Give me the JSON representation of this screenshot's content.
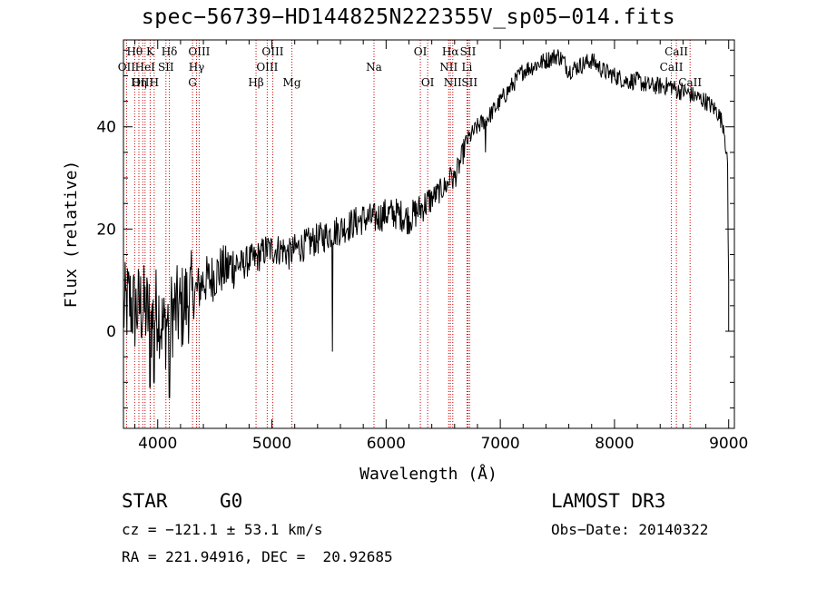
{
  "chart_data": {
    "type": "line",
    "title": "spec−56739−HD144825N222355V_sp05−014.fits",
    "xlabel": "Wavelength (Å)",
    "ylabel": "Flux (relative)",
    "xlim": [
      3700,
      9050
    ],
    "ylim": [
      -19,
      57
    ],
    "x_ticks": [
      4000,
      5000,
      6000,
      7000,
      8000,
      9000
    ],
    "y_ticks": [
      0,
      20,
      40
    ],
    "series": [
      {
        "name": "spectrum",
        "color": "#000000",
        "anchors": [
          [
            3700,
            4
          ],
          [
            3750,
            6
          ],
          [
            3800,
            4
          ],
          [
            3850,
            5
          ],
          [
            3900,
            4
          ],
          [
            3950,
            2
          ],
          [
            4000,
            5
          ],
          [
            4050,
            0
          ],
          [
            4100,
            3
          ],
          [
            4150,
            4
          ],
          [
            4200,
            4
          ],
          [
            4250,
            6
          ],
          [
            4300,
            7
          ],
          [
            4350,
            8
          ],
          [
            4400,
            10
          ],
          [
            4450,
            10
          ],
          [
            4500,
            11
          ],
          [
            4550,
            12
          ],
          [
            4600,
            12
          ],
          [
            4650,
            13
          ],
          [
            4700,
            13
          ],
          [
            4750,
            13
          ],
          [
            4800,
            14
          ],
          [
            4850,
            14
          ],
          [
            4900,
            15
          ],
          [
            4950,
            16
          ],
          [
            5000,
            16
          ],
          [
            5050,
            16
          ],
          [
            5100,
            16
          ],
          [
            5150,
            15
          ],
          [
            5200,
            16
          ],
          [
            5300,
            17
          ],
          [
            5400,
            18
          ],
          [
            5500,
            19
          ],
          [
            5600,
            20
          ],
          [
            5700,
            21
          ],
          [
            5800,
            22
          ],
          [
            5900,
            22
          ],
          [
            6000,
            23
          ],
          [
            6100,
            23
          ],
          [
            6200,
            22
          ],
          [
            6300,
            24
          ],
          [
            6400,
            26
          ],
          [
            6500,
            28
          ],
          [
            6600,
            30
          ],
          [
            6650,
            33
          ],
          [
            6700,
            37
          ],
          [
            6800,
            40
          ],
          [
            6900,
            42
          ],
          [
            7000,
            45
          ],
          [
            7100,
            48
          ],
          [
            7200,
            51
          ],
          [
            7300,
            52
          ],
          [
            7400,
            53
          ],
          [
            7500,
            54
          ],
          [
            7550,
            53
          ],
          [
            7600,
            51
          ],
          [
            7700,
            52
          ],
          [
            7800,
            53
          ],
          [
            7900,
            51
          ],
          [
            8000,
            50
          ],
          [
            8100,
            49
          ],
          [
            8200,
            49
          ],
          [
            8300,
            48
          ],
          [
            8400,
            48
          ],
          [
            8500,
            48
          ],
          [
            8550,
            47
          ],
          [
            8600,
            47
          ],
          [
            8700,
            46
          ],
          [
            8800,
            45
          ],
          [
            8900,
            43
          ],
          [
            8960,
            40
          ],
          [
            8990,
            32
          ],
          [
            9000,
            6
          ],
          [
            9000,
            0
          ]
        ],
        "dips": [
          [
            3934,
            -11
          ],
          [
            3969,
            -10
          ],
          [
            4102,
            -13
          ],
          [
            5530,
            -4
          ],
          [
            6563,
            32
          ],
          [
            6870,
            35
          ]
        ]
      }
    ],
    "spectral_lines": [
      {
        "label": "Hθ",
        "wavelength": 3798,
        "row": 1
      },
      {
        "label": "OII",
        "wavelength": 3727,
        "row": 2
      },
      {
        "label": "OIII",
        "wavelength": 3869,
        "row": 3
      },
      {
        "label": "K",
        "wavelength": 3934,
        "row": 1
      },
      {
        "label": "HeI",
        "wavelength": 3889,
        "row": 2
      },
      {
        "label": "Hη",
        "wavelength": 3835,
        "row": 3
      },
      {
        "label": "Hδ",
        "wavelength": 4102,
        "row": 1
      },
      {
        "label": "SII",
        "wavelength": 4072,
        "row": 2
      },
      {
        "label": "H",
        "wavelength": 3969,
        "row": 3
      },
      {
        "label": "OIII",
        "wavelength": 4363,
        "row": 1
      },
      {
        "label": "Hγ",
        "wavelength": 4340,
        "row": 2
      },
      {
        "label": "G",
        "wavelength": 4305,
        "row": 3
      },
      {
        "label": "OIII",
        "wavelength": 5007,
        "row": 1
      },
      {
        "label": "OIII",
        "wavelength": 4959,
        "row": 2
      },
      {
        "label": "Hβ",
        "wavelength": 4861,
        "row": 3
      },
      {
        "label": "Mg",
        "wavelength": 5175,
        "row": 3
      },
      {
        "label": "Na",
        "wavelength": 5894,
        "row": 2
      },
      {
        "label": "OI",
        "wavelength": 6300,
        "row": 1
      },
      {
        "label": "OI",
        "wavelength": 6364,
        "row": 3
      },
      {
        "label": "Hα",
        "wavelength": 6563,
        "row": 1
      },
      {
        "label": "NII",
        "wavelength": 6548,
        "row": 2
      },
      {
        "label": "NII",
        "wavelength": 6584,
        "row": 3
      },
      {
        "label": "SII",
        "wavelength": 6717,
        "row": 1
      },
      {
        "label": "Li",
        "wavelength": 6708,
        "row": 2
      },
      {
        "label": "SII",
        "wavelength": 6731,
        "row": 3
      },
      {
        "label": "CaII",
        "wavelength": 8542,
        "row": 1
      },
      {
        "label": "CaII",
        "wavelength": 8498,
        "row": 2
      },
      {
        "label": "CaII",
        "wavelength": 8662,
        "row": 3
      }
    ]
  },
  "info": {
    "object_type": "STAR",
    "subclass": "G0",
    "survey": "LAMOST DR3",
    "redshift": "cz = −121.1 ± 53.1 km/s",
    "obs_date": "Obs−Date: 20140322",
    "coords": "RA = 221.94916, DEC =  20.92685"
  },
  "colors": {
    "line_marker": "#cc0000",
    "spectrum": "#000000"
  }
}
